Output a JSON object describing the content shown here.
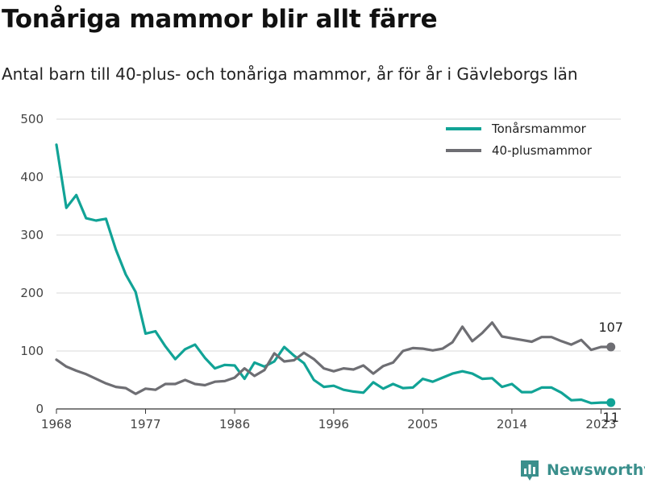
{
  "header": {
    "title": "Tonåriga mammor blir allt färre",
    "subtitle": "Antal barn till 40-plus- och tonåriga mammor, år för år i Gävleborgs län"
  },
  "brand": {
    "name": "Newsworthy",
    "icon": "bar-chart-logo-icon"
  },
  "colors": {
    "teen": "#11a396",
    "forty": "#6e6e73",
    "grid": "#d9d9d9",
    "axis": "#333333"
  },
  "chart_data": {
    "type": "line",
    "title": "Tonåriga mammor blir allt färre",
    "subtitle": "Antal barn till 40-plus- och tonåriga mammor, år för år i Gävleborgs län",
    "xlabel": "",
    "ylabel": "",
    "xlim": [
      1968,
      2025
    ],
    "ylim": [
      0,
      500
    ],
    "x_ticks": [
      1968,
      1977,
      1986,
      1996,
      2005,
      2014,
      2023
    ],
    "y_ticks": [
      0,
      100,
      200,
      300,
      400,
      500
    ],
    "grid": true,
    "legend_position": "top-right",
    "x": [
      1968,
      1969,
      1970,
      1971,
      1972,
      1973,
      1974,
      1975,
      1976,
      1977,
      1978,
      1979,
      1980,
      1981,
      1982,
      1983,
      1984,
      1985,
      1986,
      1987,
      1988,
      1989,
      1990,
      1991,
      1992,
      1993,
      1994,
      1995,
      1996,
      1997,
      1998,
      1999,
      2000,
      2001,
      2002,
      2003,
      2004,
      2005,
      2006,
      2007,
      2008,
      2009,
      2010,
      2011,
      2012,
      2013,
      2014,
      2015,
      2016,
      2017,
      2018,
      2019,
      2020,
      2021,
      2022,
      2023,
      2024
    ],
    "series": [
      {
        "name": "Tonårsmammor",
        "color": "#11a396",
        "values": [
          456,
          347,
          369,
          329,
          325,
          328,
          275,
          232,
          202,
          130,
          134,
          108,
          86,
          103,
          111,
          88,
          70,
          76,
          75,
          52,
          80,
          73,
          82,
          107,
          92,
          79,
          50,
          38,
          40,
          33,
          30,
          28,
          46,
          35,
          43,
          36,
          37,
          52,
          47,
          54,
          61,
          65,
          61,
          52,
          53,
          38,
          43,
          29,
          29,
          37,
          37,
          28,
          15,
          16,
          10,
          11,
          11
        ],
        "end_label": "11"
      },
      {
        "name": "40-plusmammor",
        "color": "#6e6e73",
        "values": [
          85,
          73,
          66,
          60,
          52,
          44,
          38,
          36,
          26,
          35,
          33,
          43,
          43,
          50,
          43,
          41,
          47,
          48,
          54,
          70,
          57,
          67,
          96,
          82,
          84,
          97,
          86,
          70,
          65,
          70,
          68,
          75,
          61,
          74,
          80,
          100,
          105,
          104,
          101,
          104,
          115,
          142,
          117,
          131,
          149,
          125,
          122,
          119,
          116,
          124,
          124,
          117,
          111,
          119,
          102,
          107,
          107
        ],
        "end_label": "107"
      }
    ]
  }
}
